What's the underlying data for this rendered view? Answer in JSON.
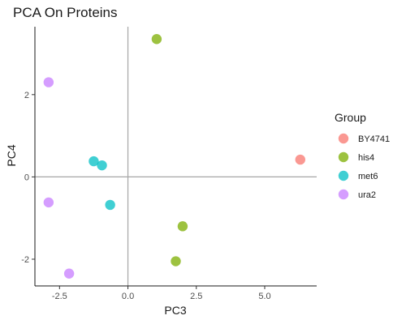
{
  "chart_data": {
    "type": "scatter",
    "title": "PCA On Proteins",
    "xlabel": "PC3",
    "ylabel": "PC4",
    "xlim": [
      -3.4,
      6.9
    ],
    "ylim": [
      -2.65,
      3.65
    ],
    "x_ticks": [
      -2.5,
      0.0,
      2.5,
      5.0
    ],
    "x_tick_labels": [
      "-2.5",
      "0.0",
      "2.5",
      "5.0"
    ],
    "y_ticks": [
      -2,
      0,
      2
    ],
    "y_tick_labels": [
      "-2",
      "0",
      "2"
    ],
    "reference_lines": {
      "x": 0,
      "y": 0
    },
    "grid": false,
    "legend": {
      "title": "Group",
      "position": "right"
    },
    "series": [
      {
        "name": "BY4741",
        "color": "#F8766D",
        "points": [
          {
            "x": 6.3,
            "y": 0.42
          }
        ]
      },
      {
        "name": "his4",
        "color": "#7CAE00",
        "points": [
          {
            "x": 1.05,
            "y": 3.35
          },
          {
            "x": 2.0,
            "y": -1.2
          },
          {
            "x": 1.75,
            "y": -2.05
          }
        ]
      },
      {
        "name": "met6",
        "color": "#00BFC4",
        "points": [
          {
            "x": -1.25,
            "y": 0.38
          },
          {
            "x": -0.95,
            "y": 0.28
          },
          {
            "x": -0.65,
            "y": -0.68
          }
        ]
      },
      {
        "name": "ura2",
        "color": "#C77CFF",
        "points": [
          {
            "x": -2.9,
            "y": 2.3
          },
          {
            "x": -2.9,
            "y": -0.62
          },
          {
            "x": -2.15,
            "y": -2.35
          }
        ]
      }
    ]
  }
}
